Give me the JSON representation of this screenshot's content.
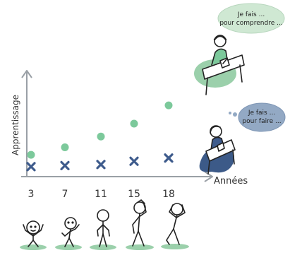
{
  "bubble_top": {
    "line1": "Je fais ...",
    "line2": "pour comprendre ..."
  },
  "bubble_bottom": {
    "line1": "Je fais ...",
    "line2": "pour faire ..."
  },
  "colors": {
    "green": "#7cc99b",
    "blue": "#3e5b8c",
    "axis": "#9aa0a6",
    "bubble_green": "#cfe8d3",
    "bubble_blue": "#93a9c4",
    "ink": "#222222",
    "shadow_green": "#9bd0ab",
    "shadow_blue": "#3c5a88"
  },
  "chart_data": {
    "type": "scatter",
    "xlabel": "Années",
    "ylabel": "Apprentissage",
    "categories": [
      "3",
      "7",
      "11",
      "15",
      "18"
    ],
    "series": [
      {
        "marker": "circle",
        "color": "#7cc99b",
        "values": [
          1.7,
          2.4,
          3.4,
          4.6,
          6.3
        ]
      },
      {
        "marker": "cross",
        "color": "#3e5b8c",
        "values": [
          0.6,
          0.7,
          0.8,
          1.1,
          1.4
        ]
      }
    ],
    "ylim": [
      0,
      9
    ],
    "grid": false,
    "legend": "none"
  },
  "figures": [
    {
      "age": "3",
      "pose": "baby"
    },
    {
      "age": "7",
      "pose": "child"
    },
    {
      "age": "11",
      "pose": "preteen"
    },
    {
      "age": "15",
      "pose": "teen-hand-on-head"
    },
    {
      "age": "18",
      "pose": "young-adult-hands-on-head"
    }
  ]
}
